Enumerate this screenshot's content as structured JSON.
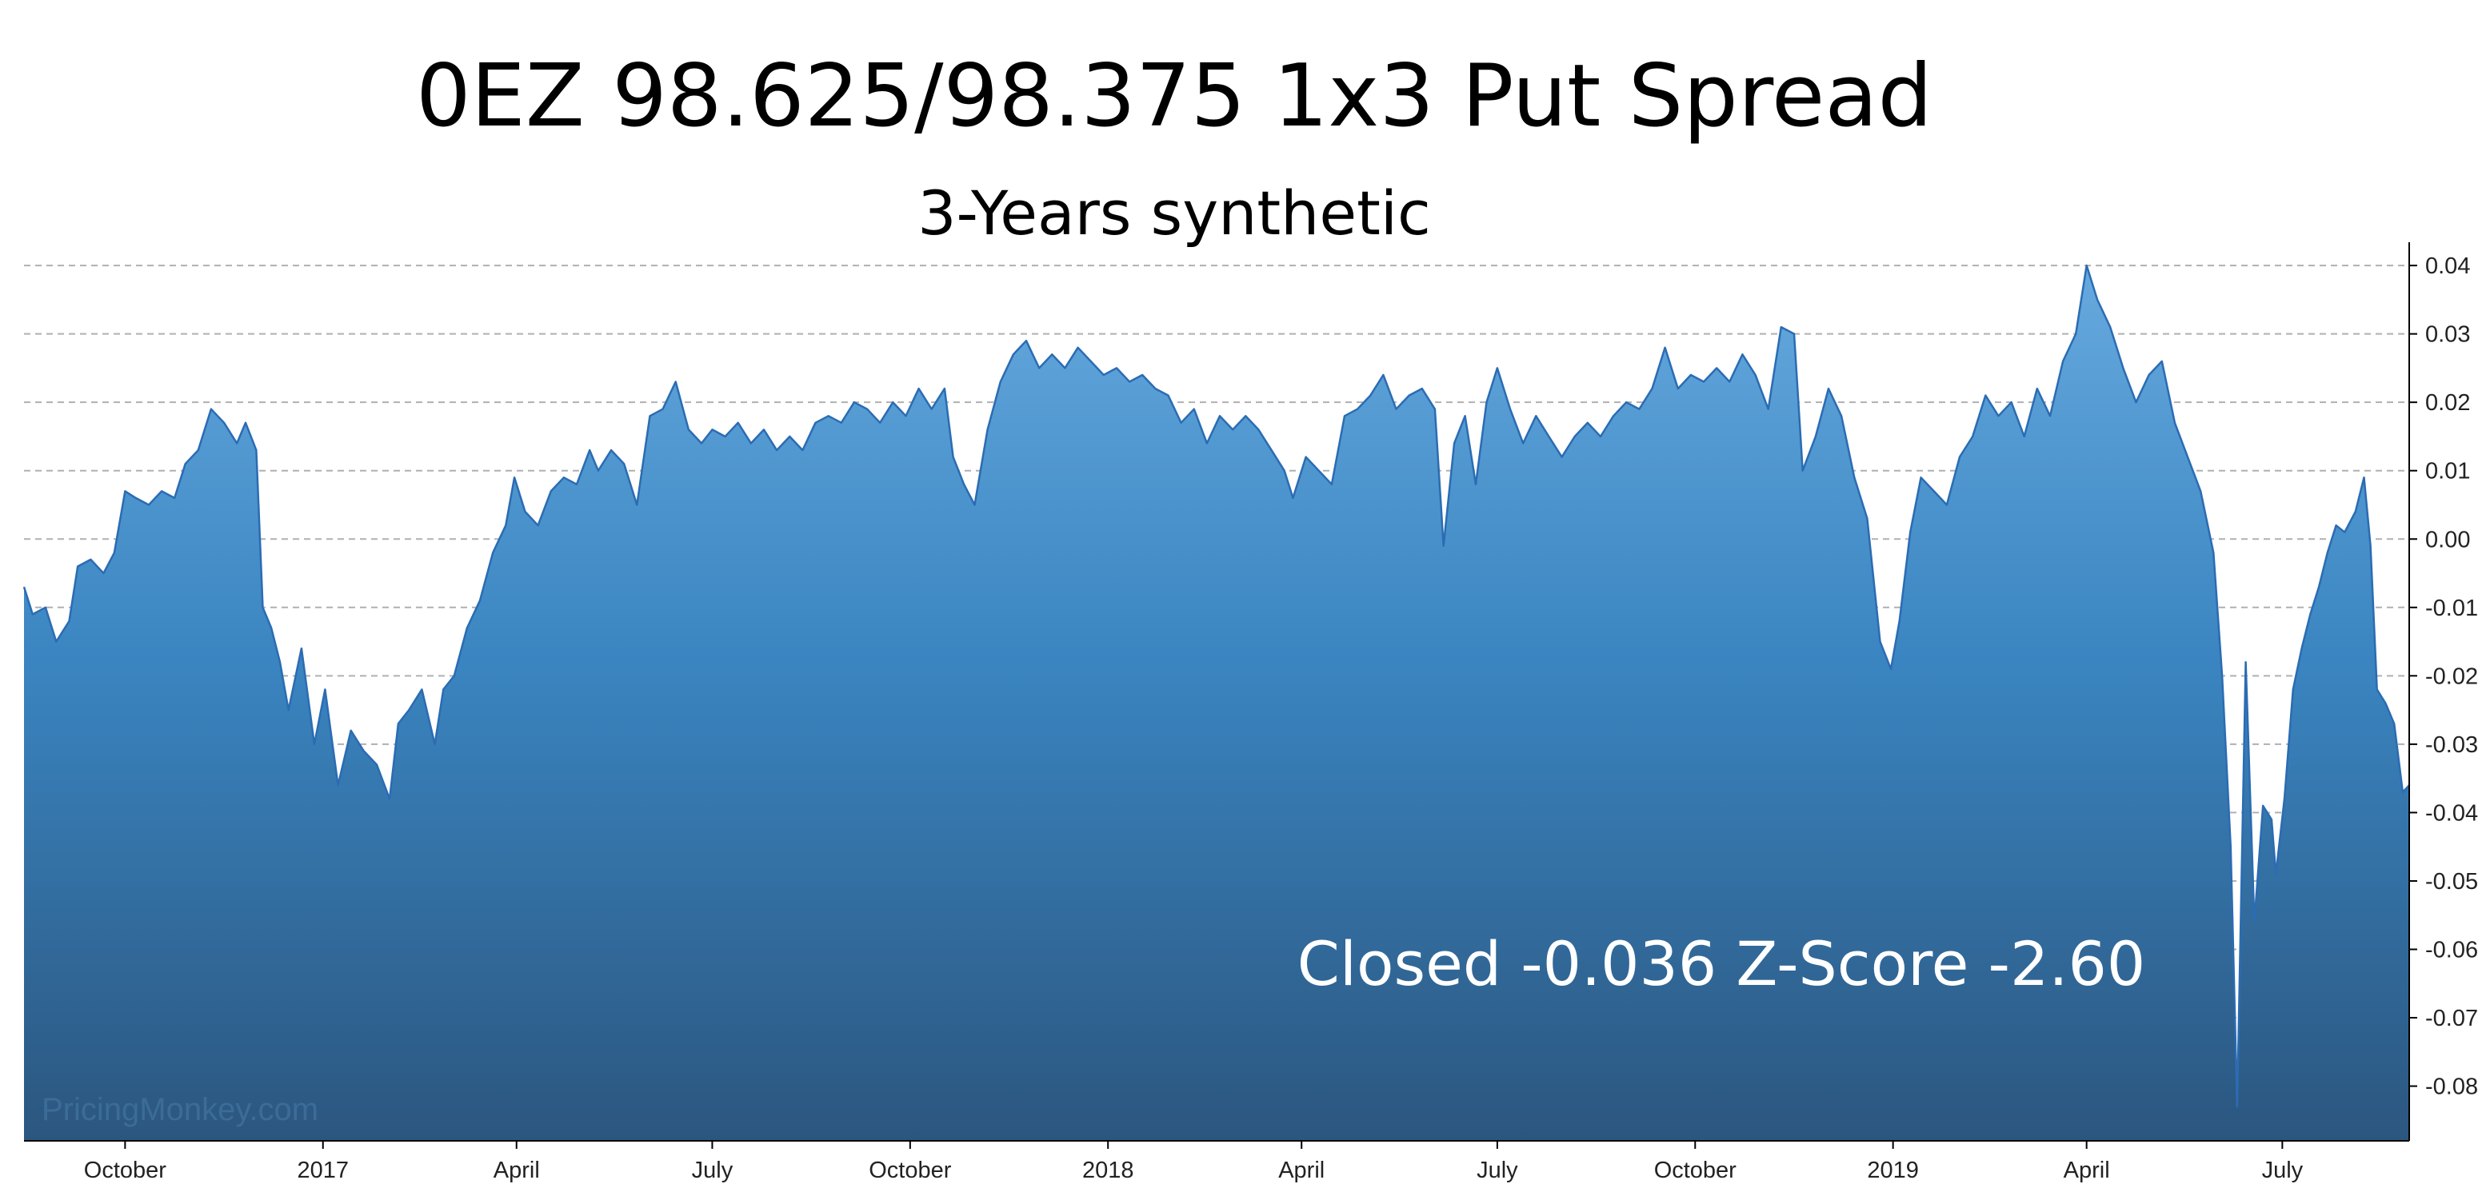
{
  "chart_data": {
    "type": "area",
    "title": "0EZ 98.625/98.375 1x3 Put Spread",
    "subtitle": "3-Years synthetic",
    "annotation": "Closed -0.036 Z-Score -2.60",
    "watermark": "PricingMonkey.com",
    "xlabel": "",
    "ylabel": "",
    "x_range": [
      "2016-08-15",
      "2019-08-29"
    ],
    "ylim": [
      -0.088,
      0.042
    ],
    "y_ticks": [
      "0.04",
      "0.03",
      "0.02",
      "0.01",
      "0.00",
      "-0.01",
      "-0.02",
      "-0.03",
      "-0.04",
      "-0.05",
      "-0.06",
      "-0.07",
      "-0.08"
    ],
    "y_tick_values": [
      0.04,
      0.03,
      0.02,
      0.01,
      0.0,
      -0.01,
      -0.02,
      -0.03,
      -0.04,
      -0.05,
      -0.06,
      -0.07,
      -0.08
    ],
    "y_axis_side": "right",
    "x_ticks": [
      {
        "label": "October",
        "date": "2016-10-01"
      },
      {
        "label": "2017",
        "date": "2017-01-01"
      },
      {
        "label": "April",
        "date": "2017-04-01"
      },
      {
        "label": "July",
        "date": "2017-07-01"
      },
      {
        "label": "October",
        "date": "2017-10-01"
      },
      {
        "label": "2018",
        "date": "2018-01-01"
      },
      {
        "label": "April",
        "date": "2018-04-01"
      },
      {
        "label": "July",
        "date": "2018-07-01"
      },
      {
        "label": "October",
        "date": "2018-10-01"
      },
      {
        "label": "2019",
        "date": "2019-01-01"
      },
      {
        "label": "April",
        "date": "2019-04-01"
      },
      {
        "label": "July",
        "date": "2019-07-01"
      }
    ],
    "grid": "horizontal dashed",
    "legend": "none",
    "colors": {
      "line": "#2b6cb3",
      "fill_top": "#66a9de",
      "fill_mid": "#3a85c1",
      "fill_bottom": "#2b567f",
      "grid": "#b0b0b0",
      "annotation_text": "#ffffff",
      "watermark_text": "#3d6f9a"
    },
    "series": [
      {
        "points": [
          [
            "2016-08-15",
            -0.007
          ],
          [
            "2016-08-19",
            -0.011
          ],
          [
            "2016-08-25",
            -0.01
          ],
          [
            "2016-08-30",
            -0.015
          ],
          [
            "2016-09-05",
            -0.012
          ],
          [
            "2016-09-09",
            -0.004
          ],
          [
            "2016-09-15",
            -0.003
          ],
          [
            "2016-09-21",
            -0.005
          ],
          [
            "2016-09-26",
            -0.002
          ],
          [
            "2016-10-01",
            0.007
          ],
          [
            "2016-10-06",
            0.006
          ],
          [
            "2016-10-12",
            0.005
          ],
          [
            "2016-10-18",
            0.007
          ],
          [
            "2016-10-24",
            0.006
          ],
          [
            "2016-10-29",
            0.011
          ],
          [
            "2016-11-04",
            0.013
          ],
          [
            "2016-11-10",
            0.019
          ],
          [
            "2016-11-16",
            0.017
          ],
          [
            "2016-11-22",
            0.014
          ],
          [
            "2016-11-26",
            0.017
          ],
          [
            "2016-12-01",
            0.013
          ],
          [
            "2016-12-04",
            -0.01
          ],
          [
            "2016-12-08",
            -0.013
          ],
          [
            "2016-12-12",
            -0.018
          ],
          [
            "2016-12-16",
            -0.025
          ],
          [
            "2016-12-22",
            -0.016
          ],
          [
            "2016-12-28",
            -0.03
          ],
          [
            "2017-01-02",
            -0.022
          ],
          [
            "2017-01-08",
            -0.036
          ],
          [
            "2017-01-14",
            -0.028
          ],
          [
            "2017-01-20",
            -0.031
          ],
          [
            "2017-01-26",
            -0.033
          ],
          [
            "2017-02-01",
            -0.038
          ],
          [
            "2017-02-05",
            -0.027
          ],
          [
            "2017-02-10",
            -0.025
          ],
          [
            "2017-02-16",
            -0.022
          ],
          [
            "2017-02-22",
            -0.03
          ],
          [
            "2017-02-26",
            -0.022
          ],
          [
            "2017-03-03",
            -0.02
          ],
          [
            "2017-03-09",
            -0.013
          ],
          [
            "2017-03-15",
            -0.009
          ],
          [
            "2017-03-21",
            -0.002
          ],
          [
            "2017-03-27",
            0.002
          ],
          [
            "2017-03-31",
            0.009
          ],
          [
            "2017-04-05",
            0.004
          ],
          [
            "2017-04-11",
            0.002
          ],
          [
            "2017-04-17",
            0.007
          ],
          [
            "2017-04-23",
            0.009
          ],
          [
            "2017-04-29",
            0.008
          ],
          [
            "2017-05-05",
            0.013
          ],
          [
            "2017-05-09",
            0.01
          ],
          [
            "2017-05-15",
            0.013
          ],
          [
            "2017-05-21",
            0.011
          ],
          [
            "2017-05-27",
            0.005
          ],
          [
            "2017-06-02",
            0.018
          ],
          [
            "2017-06-08",
            0.019
          ],
          [
            "2017-06-14",
            0.023
          ],
          [
            "2017-06-20",
            0.016
          ],
          [
            "2017-06-26",
            0.014
          ],
          [
            "2017-07-01",
            0.016
          ],
          [
            "2017-07-07",
            0.015
          ],
          [
            "2017-07-13",
            0.017
          ],
          [
            "2017-07-19",
            0.014
          ],
          [
            "2017-07-25",
            0.016
          ],
          [
            "2017-07-31",
            0.013
          ],
          [
            "2017-08-06",
            0.015
          ],
          [
            "2017-08-12",
            0.013
          ],
          [
            "2017-08-18",
            0.017
          ],
          [
            "2017-08-24",
            0.018
          ],
          [
            "2017-08-30",
            0.017
          ],
          [
            "2017-09-05",
            0.02
          ],
          [
            "2017-09-11",
            0.019
          ],
          [
            "2017-09-17",
            0.017
          ],
          [
            "2017-09-23",
            0.02
          ],
          [
            "2017-09-29",
            0.018
          ],
          [
            "2017-10-05",
            0.022
          ],
          [
            "2017-10-11",
            0.019
          ],
          [
            "2017-10-17",
            0.022
          ],
          [
            "2017-10-21",
            0.012
          ],
          [
            "2017-10-26",
            0.008
          ],
          [
            "2017-10-31",
            0.005
          ],
          [
            "2017-11-06",
            0.016
          ],
          [
            "2017-11-12",
            0.023
          ],
          [
            "2017-11-18",
            0.027
          ],
          [
            "2017-11-24",
            0.029
          ],
          [
            "2017-11-30",
            0.025
          ],
          [
            "2017-12-06",
            0.027
          ],
          [
            "2017-12-12",
            0.025
          ],
          [
            "2017-12-18",
            0.028
          ],
          [
            "2017-12-24",
            0.026
          ],
          [
            "2017-12-30",
            0.024
          ],
          [
            "2018-01-05",
            0.025
          ],
          [
            "2018-01-11",
            0.023
          ],
          [
            "2018-01-17",
            0.024
          ],
          [
            "2018-01-23",
            0.022
          ],
          [
            "2018-01-29",
            0.021
          ],
          [
            "2018-02-04",
            0.017
          ],
          [
            "2018-02-10",
            0.019
          ],
          [
            "2018-02-16",
            0.014
          ],
          [
            "2018-02-22",
            0.018
          ],
          [
            "2018-02-28",
            0.016
          ],
          [
            "2018-03-06",
            0.018
          ],
          [
            "2018-03-12",
            0.016
          ],
          [
            "2018-03-18",
            0.013
          ],
          [
            "2018-03-24",
            0.01
          ],
          [
            "2018-03-28",
            0.006
          ],
          [
            "2018-04-03",
            0.012
          ],
          [
            "2018-04-09",
            0.01
          ],
          [
            "2018-04-15",
            0.008
          ],
          [
            "2018-04-21",
            0.018
          ],
          [
            "2018-04-27",
            0.019
          ],
          [
            "2018-05-03",
            0.021
          ],
          [
            "2018-05-09",
            0.024
          ],
          [
            "2018-05-15",
            0.019
          ],
          [
            "2018-05-21",
            0.021
          ],
          [
            "2018-05-27",
            0.022
          ],
          [
            "2018-06-02",
            0.019
          ],
          [
            "2018-06-06",
            -0.001
          ],
          [
            "2018-06-11",
            0.014
          ],
          [
            "2018-06-16",
            0.018
          ],
          [
            "2018-06-21",
            0.008
          ],
          [
            "2018-06-26",
            0.02
          ],
          [
            "2018-07-01",
            0.025
          ],
          [
            "2018-07-07",
            0.019
          ],
          [
            "2018-07-13",
            0.014
          ],
          [
            "2018-07-19",
            0.018
          ],
          [
            "2018-07-25",
            0.015
          ],
          [
            "2018-07-31",
            0.012
          ],
          [
            "2018-08-06",
            0.015
          ],
          [
            "2018-08-12",
            0.017
          ],
          [
            "2018-08-18",
            0.015
          ],
          [
            "2018-08-24",
            0.018
          ],
          [
            "2018-08-30",
            0.02
          ],
          [
            "2018-09-05",
            0.019
          ],
          [
            "2018-09-11",
            0.022
          ],
          [
            "2018-09-17",
            0.028
          ],
          [
            "2018-09-23",
            0.022
          ],
          [
            "2018-09-29",
            0.024
          ],
          [
            "2018-10-05",
            0.023
          ],
          [
            "2018-10-11",
            0.025
          ],
          [
            "2018-10-17",
            0.023
          ],
          [
            "2018-10-23",
            0.027
          ],
          [
            "2018-10-29",
            0.024
          ],
          [
            "2018-11-04",
            0.019
          ],
          [
            "2018-11-10",
            0.031
          ],
          [
            "2018-11-16",
            0.03
          ],
          [
            "2018-11-20",
            0.01
          ],
          [
            "2018-11-26",
            0.015
          ],
          [
            "2018-12-02",
            0.022
          ],
          [
            "2018-12-08",
            0.018
          ],
          [
            "2018-12-14",
            0.009
          ],
          [
            "2018-12-20",
            0.003
          ],
          [
            "2018-12-26",
            -0.015
          ],
          [
            "2018-12-31",
            -0.019
          ],
          [
            "2019-01-04",
            -0.012
          ],
          [
            "2019-01-09",
            0.001
          ],
          [
            "2019-01-14",
            0.009
          ],
          [
            "2019-01-20",
            0.007
          ],
          [
            "2019-01-26",
            0.005
          ],
          [
            "2019-02-01",
            0.012
          ],
          [
            "2019-02-07",
            0.015
          ],
          [
            "2019-02-13",
            0.021
          ],
          [
            "2019-02-19",
            0.018
          ],
          [
            "2019-02-25",
            0.02
          ],
          [
            "2019-03-03",
            0.015
          ],
          [
            "2019-03-09",
            0.022
          ],
          [
            "2019-03-15",
            0.018
          ],
          [
            "2019-03-21",
            0.026
          ],
          [
            "2019-03-27",
            0.03
          ],
          [
            "2019-04-01",
            0.04
          ],
          [
            "2019-04-06",
            0.035
          ],
          [
            "2019-04-12",
            0.031
          ],
          [
            "2019-04-18",
            0.025
          ],
          [
            "2019-04-24",
            0.02
          ],
          [
            "2019-04-30",
            0.024
          ],
          [
            "2019-05-06",
            0.026
          ],
          [
            "2019-05-12",
            0.017
          ],
          [
            "2019-05-18",
            0.012
          ],
          [
            "2019-05-24",
            0.007
          ],
          [
            "2019-05-30",
            -0.002
          ],
          [
            "2019-06-03",
            -0.02
          ],
          [
            "2019-06-07",
            -0.045
          ],
          [
            "2019-06-10",
            -0.083
          ],
          [
            "2019-06-14",
            -0.018
          ],
          [
            "2019-06-18",
            -0.056
          ],
          [
            "2019-06-22",
            -0.039
          ],
          [
            "2019-06-26",
            -0.041
          ],
          [
            "2019-06-28",
            -0.049
          ],
          [
            "2019-07-02",
            -0.038
          ],
          [
            "2019-07-06",
            -0.022
          ],
          [
            "2019-07-10",
            -0.016
          ],
          [
            "2019-07-14",
            -0.011
          ],
          [
            "2019-07-18",
            -0.007
          ],
          [
            "2019-07-22",
            -0.002
          ],
          [
            "2019-07-26",
            0.002
          ],
          [
            "2019-07-30",
            0.001
          ],
          [
            "2019-08-04",
            0.004
          ],
          [
            "2019-08-08",
            0.009
          ],
          [
            "2019-08-11",
            -0.001
          ],
          [
            "2019-08-14",
            -0.022
          ],
          [
            "2019-08-18",
            -0.024
          ],
          [
            "2019-08-22",
            -0.027
          ],
          [
            "2019-08-26",
            -0.037
          ],
          [
            "2019-08-29",
            -0.036
          ]
        ]
      }
    ]
  }
}
